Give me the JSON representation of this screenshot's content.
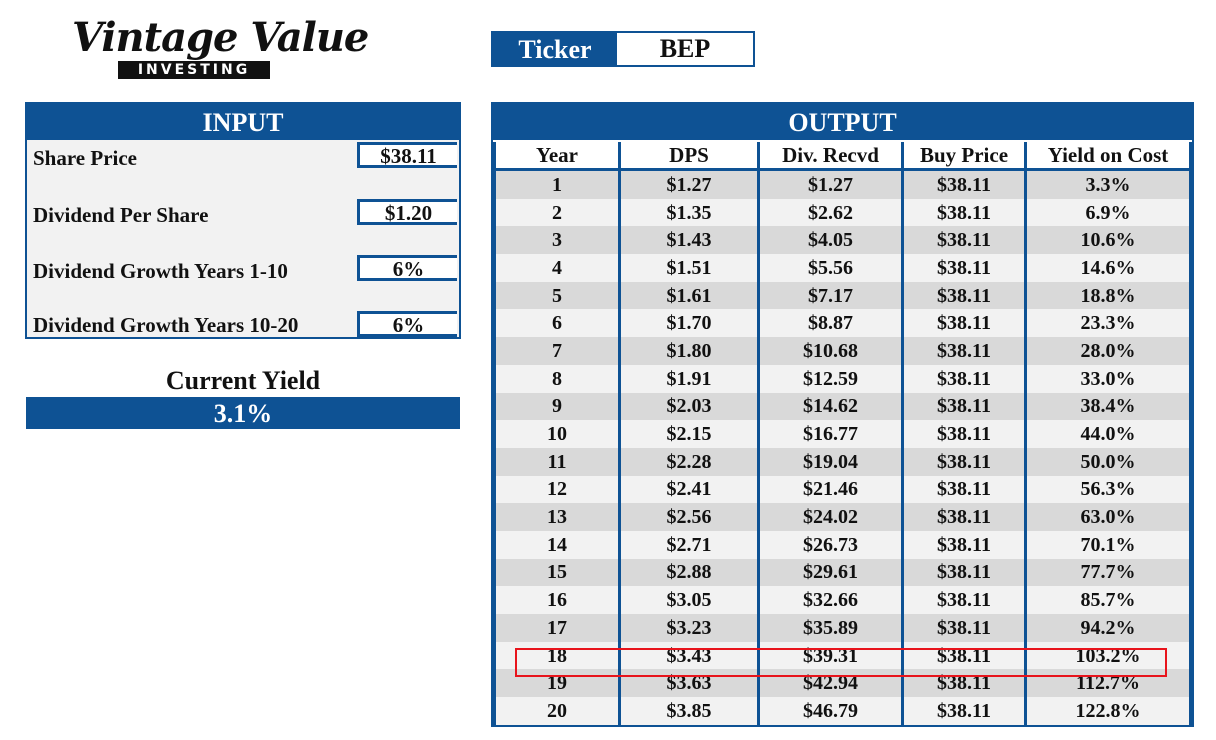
{
  "logo": {
    "script": "Vintage Value",
    "banner": "INVESTING"
  },
  "ticker": {
    "label": "Ticker",
    "value": "BEP"
  },
  "input": {
    "title": "INPUT",
    "rows": [
      {
        "label": "Share Price",
        "value": "$38.11"
      },
      {
        "label": "Dividend Per Share",
        "value": "$1.20"
      },
      {
        "label": "Dividend Growth Years 1-10",
        "value": "6%"
      },
      {
        "label": "Dividend Growth Years 10-20",
        "value": "6%"
      }
    ]
  },
  "current_yield": {
    "label": "Current Yield",
    "value": "3.1%"
  },
  "output": {
    "title": "OUTPUT",
    "columns": [
      "Year",
      "DPS",
      "Div. Recvd",
      "Buy Price",
      "Yield on Cost"
    ],
    "rows": [
      [
        "1",
        "$1.27",
        "$1.27",
        "$38.11",
        "3.3%"
      ],
      [
        "2",
        "$1.35",
        "$2.62",
        "$38.11",
        "6.9%"
      ],
      [
        "3",
        "$1.43",
        "$4.05",
        "$38.11",
        "10.6%"
      ],
      [
        "4",
        "$1.51",
        "$5.56",
        "$38.11",
        "14.6%"
      ],
      [
        "5",
        "$1.61",
        "$7.17",
        "$38.11",
        "18.8%"
      ],
      [
        "6",
        "$1.70",
        "$8.87",
        "$38.11",
        "23.3%"
      ],
      [
        "7",
        "$1.80",
        "$10.68",
        "$38.11",
        "28.0%"
      ],
      [
        "8",
        "$1.91",
        "$12.59",
        "$38.11",
        "33.0%"
      ],
      [
        "9",
        "$2.03",
        "$14.62",
        "$38.11",
        "38.4%"
      ],
      [
        "10",
        "$2.15",
        "$16.77",
        "$38.11",
        "44.0%"
      ],
      [
        "11",
        "$2.28",
        "$19.04",
        "$38.11",
        "50.0%"
      ],
      [
        "12",
        "$2.41",
        "$21.46",
        "$38.11",
        "56.3%"
      ],
      [
        "13",
        "$2.56",
        "$24.02",
        "$38.11",
        "63.0%"
      ],
      [
        "14",
        "$2.71",
        "$26.73",
        "$38.11",
        "70.1%"
      ],
      [
        "15",
        "$2.88",
        "$29.61",
        "$38.11",
        "77.7%"
      ],
      [
        "16",
        "$3.05",
        "$32.66",
        "$38.11",
        "85.7%"
      ],
      [
        "17",
        "$3.23",
        "$35.89",
        "$38.11",
        "94.2%"
      ],
      [
        "18",
        "$3.43",
        "$39.31",
        "$38.11",
        "103.2%"
      ],
      [
        "19",
        "$3.63",
        "$42.94",
        "$38.11",
        "112.7%"
      ],
      [
        "20",
        "$3.85",
        "$46.79",
        "$38.11",
        "122.8%"
      ]
    ],
    "highlighted_year": "18"
  },
  "colors": {
    "brand": "#0e5294",
    "highlight": "#e8141c"
  }
}
